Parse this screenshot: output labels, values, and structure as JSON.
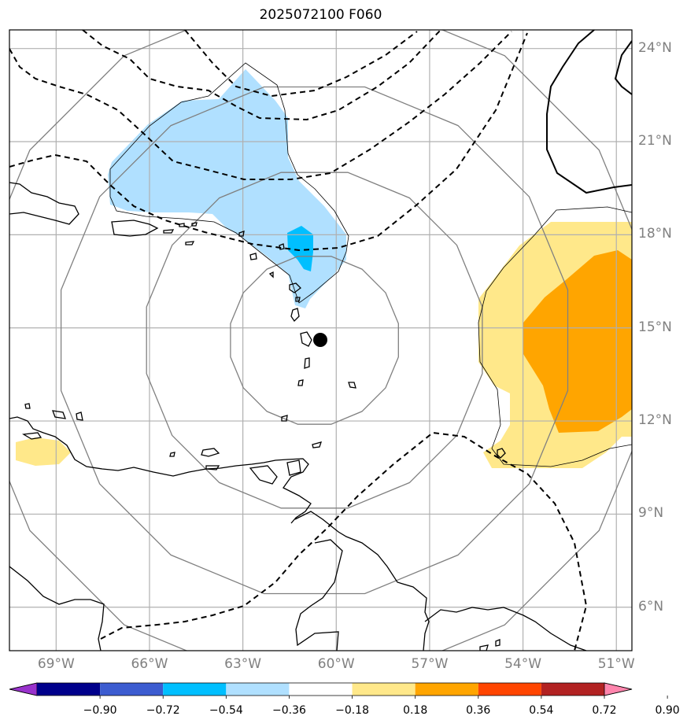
{
  "title": "2025072100 F060",
  "map": {
    "projection": "lat-lon",
    "lon_range": [
      -70.5,
      -50.5
    ],
    "lat_range": [
      4.6,
      24.6
    ],
    "lat_ticks": [
      {
        "value": 24,
        "label": "24°N"
      },
      {
        "value": 21,
        "label": "21°N"
      },
      {
        "value": 18,
        "label": "18°N"
      },
      {
        "value": 15,
        "label": "15°N"
      },
      {
        "value": 12,
        "label": "12°N"
      },
      {
        "value": 9,
        "label": "9°N"
      },
      {
        "value": 6,
        "label": "6°N"
      }
    ],
    "lon_ticks": [
      {
        "value": -69,
        "label": "69°W"
      },
      {
        "value": -66,
        "label": "66°W"
      },
      {
        "value": -63,
        "label": "63°W"
      },
      {
        "value": -60,
        "label": "60°W"
      },
      {
        "value": -57,
        "label": "57°W"
      },
      {
        "value": -54,
        "label": "54°W"
      },
      {
        "value": -51,
        "label": "51°W"
      }
    ],
    "grid": true,
    "storm_center": {
      "lon": -60.7,
      "lat": 14.6
    },
    "range_rings_deg": [
      2.75,
      5.5,
      8.3,
      11
    ]
  },
  "colorbar": {
    "levels": [
      "−0.90",
      "−0.72",
      "−0.54",
      "−0.36",
      "−0.18",
      "0.18",
      "0.36",
      "0.54",
      "0.72",
      "0.90"
    ],
    "colors": [
      "#9932cc",
      "#00008b",
      "#3c5cd0",
      "#00bfff",
      "#b0e0ff",
      "#ffffff",
      "#ffe88a",
      "#ffa500",
      "#ff4500",
      "#b22222",
      "#ff85ad"
    ],
    "extend": "both"
  },
  "colors": {
    "neg_light": "#b0e0ff",
    "neg_mid": "#00bfff",
    "pos_light": "#ffe88a",
    "pos_mid": "#ffa500",
    "grid": "#b0b0b0",
    "ring": "#808080"
  }
}
